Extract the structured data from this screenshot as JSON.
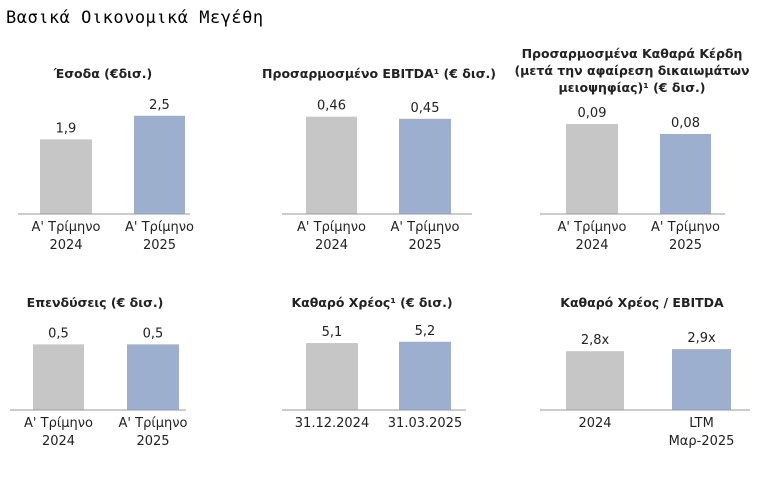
{
  "page_title": "Βασικά Οικονομικά Μεγέθη",
  "colors": {
    "bar_previous": "#c6c6c6",
    "bar_current": "#9dafcf",
    "axis": "#9a9a9a"
  },
  "chart_data": [
    {
      "type": "bar",
      "title_lines": [
        "Έσοδα (€δισ.)"
      ],
      "categories": [
        [
          "Α' Τρίμηνο",
          "2024"
        ],
        [
          "Α' Τρίμηνο",
          "2025"
        ]
      ],
      "values": [
        1.9,
        2.5
      ],
      "value_labels": [
        "1,9",
        "2,5"
      ],
      "ylim": [
        0,
        2.8
      ]
    },
    {
      "type": "bar",
      "title_lines": [
        "Προσαρμοσμένο EBITDA¹ (€ δισ.)"
      ],
      "categories": [
        [
          "Α' Τρίμηνο",
          "2024"
        ],
        [
          "Α' Τρίμηνο",
          "2025"
        ]
      ],
      "values": [
        0.46,
        0.45
      ],
      "value_labels": [
        "0,46",
        "0,45"
      ],
      "ylim": [
        0,
        0.52
      ]
    },
    {
      "type": "bar",
      "title_lines": [
        "Προσαρμοσμένα Καθαρά Κέρδη",
        "(μετά την αφαίρεση δικαιωμάτων",
        "μειοψηφίας)¹ (€ δισ.)"
      ],
      "categories": [
        [
          "Α' Τρίμηνο",
          "2024"
        ],
        [
          "Α' Τρίμηνο",
          "2025"
        ]
      ],
      "values": [
        0.09,
        0.08
      ],
      "value_labels": [
        "0,09",
        "0,08"
      ],
      "ylim": [
        0,
        0.11
      ]
    },
    {
      "type": "bar",
      "title_lines": [
        "Επενδύσεις (€ δισ.)"
      ],
      "categories": [
        [
          "Α' Τρίμηνο",
          "2024"
        ],
        [
          "Α' Τρίμηνο",
          "2025"
        ]
      ],
      "values": [
        0.5,
        0.5
      ],
      "value_labels": [
        "0,5",
        "0,5"
      ],
      "ylim": [
        0,
        0.8
      ]
    },
    {
      "type": "bar",
      "title_lines": [
        "Καθαρό Χρέος¹ (€ δισ.)"
      ],
      "categories": [
        [
          "31.12.2024"
        ],
        [
          "31.03.2025"
        ]
      ],
      "values": [
        5.1,
        5.2
      ],
      "value_labels": [
        "5,1",
        "5,2"
      ],
      "ylim": [
        0,
        8
      ]
    },
    {
      "type": "bar",
      "title_lines": [
        "Καθαρό Χρέος / EBITDA"
      ],
      "categories": [
        [
          "2024"
        ],
        [
          "LTM",
          "Μαρ-2025"
        ]
      ],
      "values": [
        2.8,
        2.9
      ],
      "value_labels": [
        "2,8x",
        "2,9x"
      ],
      "ylim": [
        0,
        5
      ]
    }
  ]
}
